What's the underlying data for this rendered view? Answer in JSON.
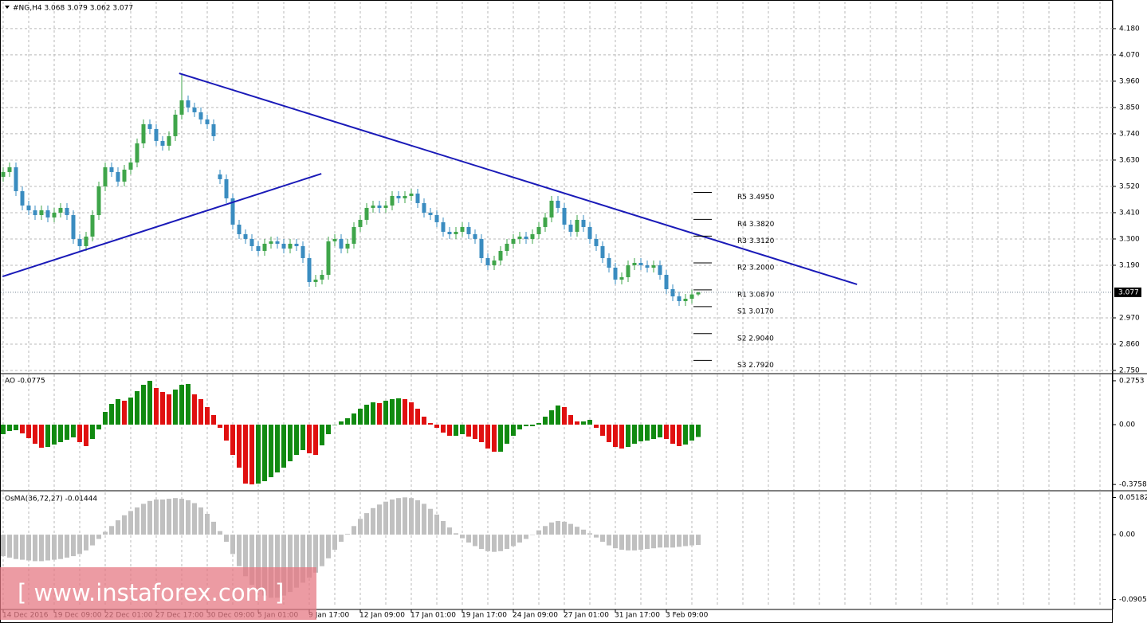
{
  "chart_data": [
    {
      "type": "candlestick",
      "title": "#NG,H4  3.068 3.079 3.062 3.077",
      "categories": [
        "14 Dec 2016",
        null,
        null,
        null,
        null,
        null,
        null,
        null,
        "19 Dec 09:00",
        null,
        null,
        null,
        null,
        null,
        null,
        null,
        "22 Dec 01:00",
        null,
        null,
        null,
        null,
        null,
        null,
        null,
        "27 Dec 17:00",
        null,
        null,
        null,
        null,
        null,
        null,
        null,
        "30 Dec 09:00",
        null,
        null,
        null,
        null,
        null,
        null,
        null,
        "5 Jan 01:00",
        null,
        null,
        null,
        null,
        null,
        null,
        null,
        "9 Jan 17:00",
        null,
        null,
        null,
        null,
        null,
        null,
        null,
        "12 Jan 09:00",
        null,
        null,
        null,
        null,
        null,
        null,
        null,
        "17 Jan 01:00",
        null,
        null,
        null,
        null,
        null,
        null,
        null,
        "19 Jan 17:00",
        null,
        null,
        null,
        null,
        null,
        null,
        null,
        "24 Jan 09:00",
        null,
        null,
        null,
        null,
        null,
        null,
        null,
        "27 Jan 01:00",
        null,
        null,
        null,
        null,
        null,
        null,
        null,
        "31 Jan 17:00",
        null,
        null,
        null,
        null,
        null,
        null,
        null,
        "3 Feb 09:00",
        null,
        null,
        null,
        null,
        null
      ],
      "open": [
        3.56,
        3.58,
        3.6,
        3.5,
        3.44,
        3.42,
        3.4,
        3.42,
        3.39,
        3.41,
        3.43,
        3.4,
        3.3,
        3.27,
        3.31,
        3.4,
        3.52,
        3.6,
        3.58,
        3.54,
        3.59,
        3.62,
        3.7,
        3.78,
        3.76,
        3.71,
        3.69,
        3.73,
        3.82,
        3.88,
        3.85,
        3.83,
        3.8,
        3.78,
        3.57,
        3.55,
        3.47,
        3.36,
        3.32,
        3.3,
        3.27,
        3.25,
        3.28,
        3.29,
        3.28,
        3.26,
        3.28,
        3.27,
        3.22,
        3.12,
        3.13,
        3.15,
        3.29,
        3.3,
        3.26,
        3.28,
        3.35,
        3.38,
        3.43,
        3.44,
        3.43,
        3.44,
        3.48,
        3.47,
        3.48,
        3.49,
        3.45,
        3.41,
        3.4,
        3.37,
        3.33,
        3.32,
        3.33,
        3.35,
        3.32,
        3.3,
        3.22,
        3.19,
        3.21,
        3.25,
        3.28,
        3.3,
        3.31,
        3.3,
        3.32,
        3.35,
        3.39,
        3.46,
        3.43,
        3.36,
        3.33,
        3.38,
        3.35,
        3.3,
        3.27,
        3.22,
        3.18,
        3.13,
        3.14,
        3.19,
        3.2,
        3.19,
        3.18,
        3.19,
        3.15,
        3.09,
        3.06,
        3.04,
        3.05,
        3.068
      ],
      "high": [
        3.6,
        3.62,
        3.62,
        3.52,
        3.46,
        3.44,
        3.44,
        3.44,
        3.43,
        3.45,
        3.45,
        3.42,
        3.32,
        3.33,
        3.42,
        3.54,
        3.62,
        3.62,
        3.6,
        3.61,
        3.64,
        3.72,
        3.8,
        3.8,
        3.78,
        3.73,
        3.75,
        3.84,
        3.99,
        3.9,
        3.87,
        3.85,
        3.82,
        3.8,
        3.59,
        3.57,
        3.49,
        3.38,
        3.34,
        3.32,
        3.29,
        3.3,
        3.31,
        3.31,
        3.3,
        3.3,
        3.3,
        3.29,
        3.24,
        3.15,
        3.17,
        3.31,
        3.32,
        3.32,
        3.3,
        3.37,
        3.4,
        3.45,
        3.46,
        3.46,
        3.46,
        3.5,
        3.5,
        3.5,
        3.51,
        3.51,
        3.47,
        3.43,
        3.42,
        3.39,
        3.35,
        3.35,
        3.37,
        3.37,
        3.34,
        3.32,
        3.24,
        3.23,
        3.27,
        3.3,
        3.32,
        3.33,
        3.33,
        3.34,
        3.37,
        3.41,
        3.48,
        3.48,
        3.45,
        3.38,
        3.4,
        3.4,
        3.37,
        3.32,
        3.29,
        3.24,
        3.2,
        3.16,
        3.21,
        3.22,
        3.22,
        3.21,
        3.21,
        3.21,
        3.17,
        3.11,
        3.08,
        3.07,
        3.088,
        3.079
      ],
      "low": [
        3.54,
        3.56,
        3.48,
        3.42,
        3.4,
        3.38,
        3.38,
        3.37,
        3.37,
        3.39,
        3.38,
        3.28,
        3.25,
        3.25,
        3.29,
        3.38,
        3.5,
        3.56,
        3.52,
        3.52,
        3.57,
        3.6,
        3.68,
        3.74,
        3.69,
        3.67,
        3.67,
        3.71,
        3.8,
        3.83,
        3.81,
        3.78,
        3.76,
        3.71,
        3.53,
        3.45,
        3.34,
        3.3,
        3.28,
        3.25,
        3.23,
        3.23,
        3.26,
        3.26,
        3.24,
        3.24,
        3.25,
        3.2,
        3.1,
        3.1,
        3.11,
        3.13,
        3.27,
        3.24,
        3.24,
        3.26,
        3.33,
        3.36,
        3.41,
        3.41,
        3.41,
        3.42,
        3.45,
        3.45,
        3.46,
        3.43,
        3.39,
        3.38,
        3.35,
        3.31,
        3.3,
        3.3,
        3.31,
        3.3,
        3.28,
        3.2,
        3.17,
        3.17,
        3.19,
        3.23,
        3.26,
        3.28,
        3.28,
        3.28,
        3.3,
        3.33,
        3.37,
        3.41,
        3.34,
        3.31,
        3.31,
        3.33,
        3.28,
        3.25,
        3.2,
        3.16,
        3.11,
        3.11,
        3.12,
        3.17,
        3.17,
        3.16,
        3.16,
        3.13,
        3.07,
        3.04,
        3.02,
        3.02,
        3.03,
        3.062
      ],
      "close": [
        3.58,
        3.6,
        3.5,
        3.44,
        3.42,
        3.4,
        3.42,
        3.39,
        3.41,
        3.43,
        3.4,
        3.3,
        3.27,
        3.31,
        3.4,
        3.52,
        3.6,
        3.58,
        3.54,
        3.59,
        3.62,
        3.7,
        3.78,
        3.76,
        3.71,
        3.69,
        3.73,
        3.82,
        3.88,
        3.85,
        3.83,
        3.8,
        3.78,
        3.73,
        3.55,
        3.47,
        3.36,
        3.32,
        3.3,
        3.27,
        3.25,
        3.28,
        3.29,
        3.28,
        3.26,
        3.28,
        3.27,
        3.22,
        3.12,
        3.13,
        3.15,
        3.29,
        3.3,
        3.26,
        3.28,
        3.35,
        3.38,
        3.43,
        3.44,
        3.43,
        3.44,
        3.48,
        3.47,
        3.48,
        3.49,
        3.45,
        3.41,
        3.4,
        3.37,
        3.33,
        3.32,
        3.33,
        3.35,
        3.32,
        3.3,
        3.22,
        3.19,
        3.21,
        3.25,
        3.28,
        3.3,
        3.31,
        3.3,
        3.32,
        3.35,
        3.39,
        3.46,
        3.43,
        3.36,
        3.33,
        3.38,
        3.35,
        3.3,
        3.27,
        3.22,
        3.18,
        3.13,
        3.14,
        3.19,
        3.2,
        3.19,
        3.18,
        3.19,
        3.15,
        3.09,
        3.06,
        3.04,
        3.05,
        3.068,
        3.077
      ],
      "up_color": "#3fa54a",
      "down_color": "#3a8cc0",
      "ylim": [
        2.74,
        4.293
      ],
      "yticks": [
        {
          "value": 4.18,
          "label": "4.180"
        },
        {
          "value": 4.07,
          "label": "4.070"
        },
        {
          "value": 3.96,
          "label": "3.960"
        },
        {
          "value": 3.85,
          "label": "3.850"
        },
        {
          "value": 3.74,
          "label": "3.740"
        },
        {
          "value": 3.63,
          "label": "3.630"
        },
        {
          "value": 3.52,
          "label": "3.520"
        },
        {
          "value": 3.41,
          "label": "3.410"
        },
        {
          "value": 3.3,
          "label": "3.300"
        },
        {
          "value": 3.19,
          "label": "3.190"
        },
        {
          "value": 2.97,
          "label": "2.970"
        },
        {
          "value": 2.86,
          "label": "2.860"
        },
        {
          "value": 2.75,
          "label": "2.750"
        }
      ],
      "grid": true,
      "last": 3.077,
      "levels": [
        {
          "label": "R5 3.4950",
          "value": 3.495
        },
        {
          "label": "R4 3.3820",
          "value": 3.382
        },
        {
          "label": "R3 3.3120",
          "value": 3.312
        },
        {
          "label": "R2 3.2000",
          "value": 3.2
        },
        {
          "label": "R1 3.0870",
          "value": 3.087
        },
        {
          "label": "S1 3.0170",
          "value": 3.017
        },
        {
          "label": "S2 2.9040",
          "value": 2.904
        },
        {
          "label": "S3 2.7920",
          "value": 2.792
        }
      ],
      "trendline_color": "#1a1ab8",
      "trendlines": [
        {
          "x": [
            27.6,
            133.9
          ],
          "y": [
            3.993,
            3.11
          ]
        },
        {
          "x": [
            -0.1,
            49.9
          ],
          "y": [
            3.143,
            3.573
          ]
        }
      ]
    },
    {
      "type": "bar",
      "title": "AO -0.0775",
      "values": [
        -0.06,
        -0.04,
        -0.035,
        -0.055,
        -0.085,
        -0.12,
        -0.145,
        -0.14,
        -0.125,
        -0.11,
        -0.095,
        -0.08,
        -0.11,
        -0.135,
        -0.09,
        -0.03,
        0.08,
        0.13,
        0.16,
        0.15,
        0.17,
        0.21,
        0.25,
        0.275,
        0.23,
        0.205,
        0.19,
        0.22,
        0.25,
        0.255,
        0.19,
        0.16,
        0.11,
        0.06,
        -0.02,
        -0.1,
        -0.19,
        -0.27,
        -0.37,
        -0.375,
        -0.37,
        -0.355,
        -0.33,
        -0.3,
        -0.27,
        -0.23,
        -0.19,
        -0.16,
        -0.18,
        -0.19,
        -0.13,
        -0.06,
        0.0,
        0.02,
        0.04,
        0.07,
        0.1,
        0.125,
        0.14,
        0.135,
        0.15,
        0.16,
        0.165,
        0.16,
        0.14,
        0.1,
        0.05,
        0.01,
        -0.02,
        -0.05,
        -0.07,
        -0.07,
        -0.06,
        -0.075,
        -0.09,
        -0.11,
        -0.15,
        -0.17,
        -0.17,
        -0.12,
        -0.07,
        -0.03,
        -0.01,
        -0.01,
        0.01,
        0.05,
        0.09,
        0.12,
        0.11,
        0.06,
        0.02,
        0.02,
        0.03,
        -0.02,
        -0.07,
        -0.11,
        -0.14,
        -0.15,
        -0.14,
        -0.12,
        -0.105,
        -0.1,
        -0.09,
        -0.08,
        -0.09,
        -0.12,
        -0.135,
        -0.125,
        -0.1,
        -0.0775
      ],
      "up_color": "#118a11",
      "down_color": "#e01010",
      "ylim": [
        -0.41,
        0.315
      ],
      "yticks": [
        0.2753,
        {
          "value": 0,
          "label": "0.00"
        },
        -0.3758
      ]
    },
    {
      "type": "bar",
      "title": "OsMA(36,72,27) -0.01444",
      "values": [
        -0.03,
        -0.032,
        -0.034,
        -0.035,
        -0.036,
        -0.037,
        -0.037,
        -0.036,
        -0.035,
        -0.034,
        -0.032,
        -0.03,
        -0.027,
        -0.022,
        -0.015,
        -0.006,
        0.004,
        0.012,
        0.02,
        0.027,
        0.033,
        0.038,
        0.043,
        0.047,
        0.049,
        0.049,
        0.05,
        0.051,
        0.05,
        0.048,
        0.044,
        0.038,
        0.029,
        0.018,
        0.005,
        -0.01,
        -0.027,
        -0.044,
        -0.058,
        -0.07,
        -0.079,
        -0.085,
        -0.088,
        -0.088,
        -0.085,
        -0.08,
        -0.074,
        -0.067,
        -0.06,
        -0.053,
        -0.044,
        -0.033,
        -0.021,
        -0.01,
        0.001,
        0.012,
        0.022,
        0.03,
        0.037,
        0.042,
        0.046,
        0.049,
        0.051,
        0.052,
        0.051,
        0.048,
        0.043,
        0.036,
        0.028,
        0.019,
        0.01,
        0.002,
        -0.005,
        -0.011,
        -0.016,
        -0.02,
        -0.023,
        -0.024,
        -0.023,
        -0.02,
        -0.016,
        -0.011,
        -0.006,
        0.0,
        0.006,
        0.012,
        0.017,
        0.019,
        0.018,
        0.015,
        0.011,
        0.007,
        0.002,
        -0.004,
        -0.01,
        -0.015,
        -0.019,
        -0.021,
        -0.022,
        -0.022,
        -0.021,
        -0.02,
        -0.019,
        -0.018,
        -0.018,
        -0.018,
        -0.017,
        -0.016,
        -0.015,
        -0.0144
      ],
      "color": "#c0c0c0",
      "ylim": [
        -0.101,
        0.059
      ],
      "yticks": [
        0.05182,
        {
          "value": 0,
          "label": "0.00"
        },
        -0.09052
      ]
    }
  ],
  "watermark": "[ www.instaforex.com ]"
}
